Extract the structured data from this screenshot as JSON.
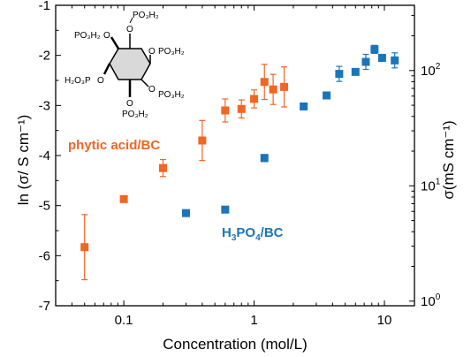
{
  "chart_data": {
    "type": "scatter",
    "xlabel": "Concentration (mol/L)",
    "ylabel_left": "ln (σ/ S cm⁻¹)",
    "ylabel_right": "σ(mS cm⁻¹)",
    "x_scale": "log",
    "xlim": [
      0.03,
      17
    ],
    "ylim_left": [
      -7,
      -1
    ],
    "ylim_right": [
      0.912,
      367.9
    ],
    "y_scale_right": "log",
    "x_ticks": [
      {
        "v": 0.1,
        "label": "0.1"
      },
      {
        "v": 1,
        "label": "1"
      },
      {
        "v": 10,
        "label": "10"
      }
    ],
    "y_ticks_left": [
      {
        "v": -1,
        "label": "-1"
      },
      {
        "v": -2,
        "label": "-2"
      },
      {
        "v": -3,
        "label": "-3"
      },
      {
        "v": -4,
        "label": "-4"
      },
      {
        "v": -5,
        "label": "-5"
      },
      {
        "v": -6,
        "label": "-6"
      },
      {
        "v": -7,
        "label": "-7"
      }
    ],
    "y_ticks_right": [
      {
        "v": 1,
        "label": "10",
        "exp": "0"
      },
      {
        "v": 10,
        "label": "10",
        "exp": "1"
      },
      {
        "v": 100,
        "label": "10",
        "exp": "2"
      }
    ],
    "grid": false,
    "legend": "none",
    "series": [
      {
        "name": "phytic acid/BC",
        "color": "#f26522",
        "points": [
          {
            "x": 0.05,
            "y": -5.83,
            "err": 0.65
          },
          {
            "x": 0.1,
            "y": -4.87,
            "err": 0
          },
          {
            "x": 0.2,
            "y": -4.25,
            "err": 0.17
          },
          {
            "x": 0.4,
            "y": -3.7,
            "err": 0.4
          },
          {
            "x": 0.6,
            "y": -3.1,
            "err": 0.23
          },
          {
            "x": 0.8,
            "y": -3.07,
            "err": 0.18
          },
          {
            "x": 1.0,
            "y": -2.87,
            "err": 0.18
          },
          {
            "x": 1.2,
            "y": -2.53,
            "err": 0.35
          },
          {
            "x": 1.4,
            "y": -2.68,
            "err": 0.3
          },
          {
            "x": 1.7,
            "y": -2.63,
            "err": 0.4
          }
        ]
      },
      {
        "name": "H₃PO₄/BC",
        "color": "#1b75bb",
        "points": [
          {
            "x": 0.3,
            "y": -5.15,
            "err": 0
          },
          {
            "x": 0.6,
            "y": -5.08,
            "err": 0
          },
          {
            "x": 1.2,
            "y": -4.05,
            "err": 0.07
          },
          {
            "x": 2.4,
            "y": -3.02,
            "err": 0
          },
          {
            "x": 3.6,
            "y": -2.8,
            "err": 0
          },
          {
            "x": 4.5,
            "y": -2.37,
            "err": 0.15
          },
          {
            "x": 6.0,
            "y": -2.33,
            "err": 0
          },
          {
            "x": 7.2,
            "y": -2.13,
            "err": 0.15
          },
          {
            "x": 8.4,
            "y": -1.88,
            "err": 0.08
          },
          {
            "x": 9.6,
            "y": -2.05,
            "err": 0.07
          },
          {
            "x": 12.0,
            "y": -2.1,
            "err": 0.15
          }
        ]
      }
    ],
    "annotations": [
      {
        "text": "phytic acid/BC",
        "color": "#f26522"
      },
      {
        "text": "H",
        "sub1": "3",
        "mid": "PO",
        "sub2": "4",
        "tail": "/BC",
        "color": "#1b75bb"
      }
    ]
  },
  "structure": {
    "top": "PO₃H₂",
    "upper_left": "PO₃H₂",
    "right": "PO₃H₂",
    "left": "H₂O₃P",
    "lower_right": "PO₃H₂",
    "bottom": "PO₃H₂",
    "oxygen": "O"
  }
}
